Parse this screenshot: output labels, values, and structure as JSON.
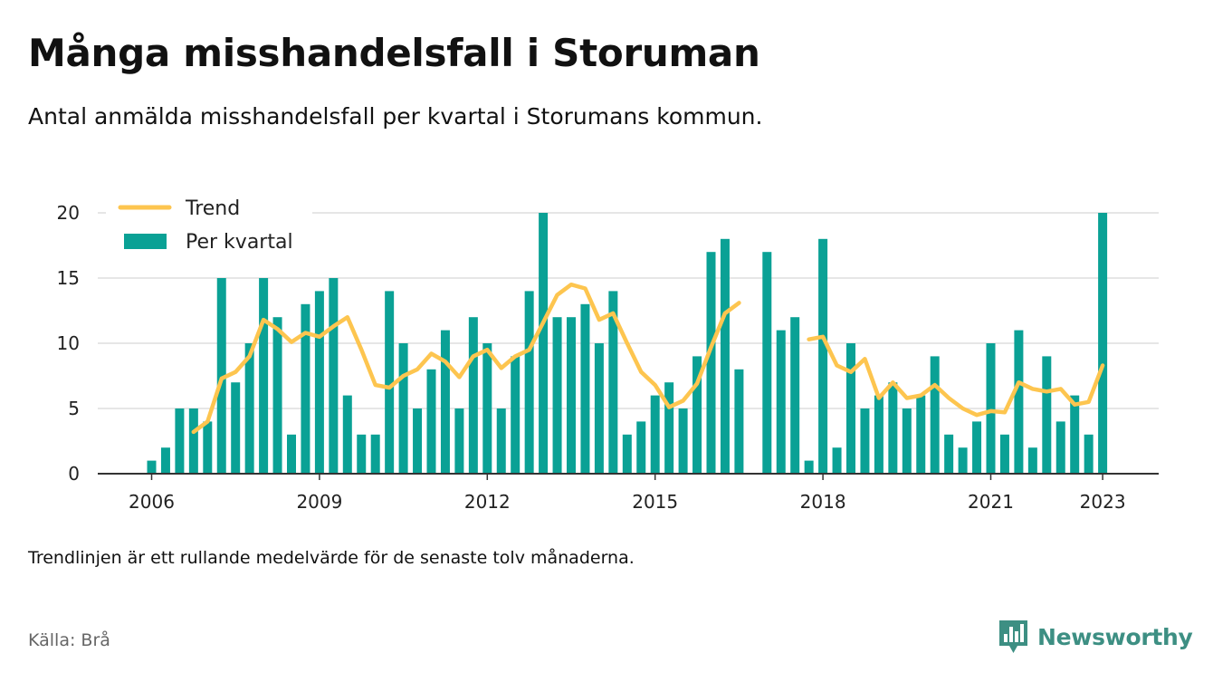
{
  "title": "Många misshandelsfall i Storuman",
  "subtitle": "Antal anmälda misshandelsfall per kvartal i Storumans kommun.",
  "note": "Trendlinjen är ett rullande medelvärde för de senaste tolv månaderna.",
  "source": "Källa: Brå",
  "brand": "Newsworthy",
  "colors": {
    "bar": "#0aa195",
    "trend": "#fdc54f",
    "grid": "#dddddd",
    "axis": "#333333",
    "brand": "#3d8f83"
  },
  "chart_data": {
    "type": "bar",
    "legend": {
      "position": "top-left",
      "entries": [
        "Trend",
        "Per kvartal"
      ]
    },
    "xlabel": "",
    "ylabel": "",
    "ylim": [
      0,
      20
    ],
    "yticks": [
      0,
      5,
      10,
      15,
      20
    ],
    "xticks": [
      2006,
      2009,
      2012,
      2015,
      2018,
      2021,
      2023
    ],
    "grid": true,
    "series": [
      {
        "name": "Per kvartal",
        "type": "bar",
        "start": "2006 Q1",
        "values": [
          1,
          2,
          5,
          5,
          4,
          15,
          7,
          10,
          15,
          12,
          3,
          13,
          14,
          15,
          6,
          3,
          3,
          14,
          10,
          5,
          8,
          11,
          5,
          12,
          10,
          5,
          9,
          14,
          20,
          12,
          12,
          13,
          10,
          14,
          3,
          4,
          6,
          7,
          5,
          9,
          17,
          18,
          8,
          null,
          17,
          11,
          12,
          1,
          18,
          2,
          10,
          5,
          6,
          7,
          5,
          6,
          9,
          3,
          2,
          4,
          10,
          3,
          11,
          2,
          9,
          4,
          6,
          3,
          20
        ]
      },
      {
        "name": "Trend",
        "type": "line",
        "start": "2006 Q4",
        "values": [
          3.2,
          4,
          7.3,
          7.8,
          9,
          11.8,
          11.1,
          10.1,
          10.8,
          10.5,
          11.3,
          12,
          9.5,
          6.8,
          6.6,
          7.5,
          8,
          9.2,
          8.6,
          7.4,
          9,
          9.5,
          8.1,
          9,
          9.5,
          11.6,
          13.7,
          14.5,
          14.2,
          11.8,
          12.3,
          10,
          7.8,
          6.8,
          5.1,
          5.6,
          6.9,
          9.7,
          12.3,
          13.1,
          null,
          null,
          null,
          null,
          10.3,
          10.5,
          8.3,
          7.8,
          8.8,
          5.8,
          7,
          5.8,
          6,
          6.8,
          5.8,
          5,
          4.5,
          4.8,
          4.7,
          7,
          6.5,
          6.3,
          6.5,
          5.3,
          5.5,
          8.3
        ]
      }
    ]
  }
}
